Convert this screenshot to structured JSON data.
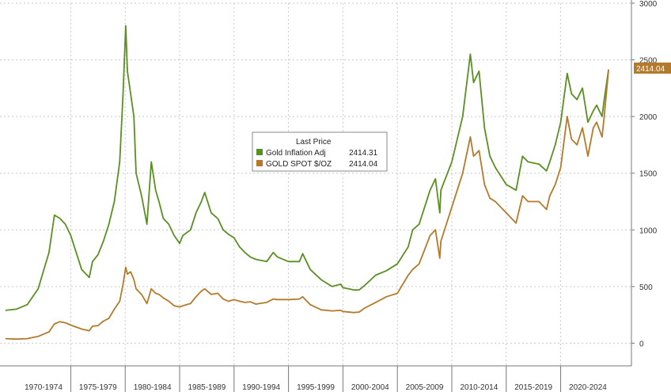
{
  "chart_data": {
    "type": "line",
    "ylim": [
      -200,
      3000
    ],
    "xlim": [
      1968.5,
      2026.5
    ],
    "y_ticks": [
      0,
      500,
      1000,
      1500,
      2000,
      2500,
      3000
    ],
    "x_categories": [
      "1970-1974",
      "1975-1979",
      "1980-1984",
      "1985-1989",
      "1990-1994",
      "1995-1999",
      "2000-2004",
      "2005-2009",
      "2010-2014",
      "2015-2019",
      "2020-2024"
    ],
    "grid": "dotted",
    "legend": {
      "title": "Last Price",
      "placement": "center",
      "entries": [
        {
          "label": "Gold Inflation Adj",
          "value": "2414.31",
          "color": "#5a8f22"
        },
        {
          "label": "GOLD SPOT $/OZ",
          "value": "2414.04",
          "color": "#b47a2a"
        }
      ]
    },
    "last_value_label": {
      "text": "2414.04",
      "color": "#b47a2a"
    },
    "series": [
      {
        "name": "Gold Inflation Adj",
        "color": "#5a8f22",
        "x": [
          1969,
          1970,
          1971,
          1972,
          1973,
          1973.5,
          1974,
          1974.5,
          1975,
          1976,
          1976.7,
          1977,
          1977.5,
          1978,
          1978.5,
          1979,
          1979.5,
          1979.8,
          1980.05,
          1980.2,
          1980.5,
          1980.8,
          1981,
          1981.5,
          1982,
          1982.4,
          1982.8,
          1983.1,
          1983.5,
          1984,
          1984.5,
          1985,
          1985.3,
          1986,
          1986.5,
          1987,
          1987.3,
          1987.9,
          1988.5,
          1989,
          1989.5,
          1990,
          1990.5,
          1991,
          1991.5,
          1992,
          1993,
          1993.6,
          1994,
          1995,
          1996,
          1996.3,
          1997,
          1998,
          1999,
          1999.8,
          2000,
          2001,
          2001.5,
          2002,
          2003,
          2004,
          2005,
          2006,
          2006.4,
          2007,
          2008,
          2008.5,
          2008.9,
          2009,
          2010,
          2011,
          2011.7,
          2012,
          2012.5,
          2013,
          2013.5,
          2014,
          2015,
          2015.9,
          2016.5,
          2017,
          2018,
          2018.7,
          2019,
          2019.5,
          2020,
          2020.6,
          2021,
          2021.5,
          2022,
          2022.5,
          2023,
          2023.3,
          2023.8,
          2024,
          2024.4
        ],
        "y": [
          290,
          300,
          340,
          480,
          800,
          1130,
          1100,
          1050,
          950,
          650,
          580,
          720,
          780,
          900,
          1050,
          1250,
          1600,
          2200,
          2800,
          2400,
          2200,
          2000,
          1500,
          1300,
          1050,
          1600,
          1350,
          1250,
          1100,
          1050,
          950,
          880,
          950,
          1000,
          1150,
          1250,
          1330,
          1150,
          1100,
          1000,
          960,
          930,
          850,
          800,
          760,
          740,
          720,
          800,
          760,
          720,
          720,
          790,
          650,
          560,
          500,
          520,
          490,
          470,
          470,
          510,
          600,
          640,
          700,
          850,
          1000,
          1050,
          1350,
          1450,
          1150,
          1350,
          1600,
          2000,
          2550,
          2300,
          2400,
          1900,
          1650,
          1550,
          1400,
          1350,
          1650,
          1600,
          1580,
          1520,
          1600,
          1750,
          1950,
          2380,
          2200,
          2150,
          2250,
          1950,
          2050,
          2100,
          2000,
          2150,
          2414.31
        ]
      },
      {
        "name": "GOLD SPOT $/OZ",
        "color": "#b47a2a",
        "x": [
          1969,
          1970,
          1971,
          1972,
          1973,
          1973.5,
          1974,
          1974.5,
          1975,
          1976,
          1976.7,
          1977,
          1977.5,
          1978,
          1978.5,
          1979,
          1979.5,
          1979.8,
          1980.05,
          1980.2,
          1980.5,
          1980.8,
          1981,
          1981.5,
          1982,
          1982.4,
          1982.8,
          1983.1,
          1983.5,
          1984,
          1984.5,
          1985,
          1985.3,
          1986,
          1986.5,
          1987,
          1987.3,
          1987.9,
          1988.5,
          1989,
          1989.5,
          1990,
          1990.5,
          1991,
          1991.5,
          1992,
          1993,
          1993.6,
          1994,
          1995,
          1996,
          1996.3,
          1997,
          1998,
          1999,
          1999.8,
          2000,
          2001,
          2001.5,
          2002,
          2003,
          2004,
          2005,
          2006,
          2006.4,
          2007,
          2008,
          2008.5,
          2008.9,
          2009,
          2010,
          2011,
          2011.7,
          2012,
          2012.5,
          2013,
          2013.5,
          2014,
          2015,
          2015.9,
          2016.5,
          2017,
          2018,
          2018.7,
          2019,
          2019.5,
          2020,
          2020.6,
          2021,
          2021.5,
          2022,
          2022.5,
          2023,
          2023.3,
          2023.8,
          2024,
          2024.4
        ],
        "y": [
          40,
          36,
          40,
          60,
          100,
          170,
          190,
          180,
          160,
          125,
          110,
          150,
          155,
          195,
          220,
          300,
          370,
          520,
          670,
          610,
          630,
          560,
          480,
          430,
          350,
          480,
          440,
          430,
          400,
          370,
          330,
          320,
          330,
          350,
          410,
          460,
          480,
          430,
          440,
          390,
          370,
          385,
          370,
          360,
          365,
          345,
          360,
          390,
          385,
          385,
          390,
          410,
          340,
          295,
          285,
          290,
          280,
          270,
          275,
          310,
          360,
          410,
          440,
          600,
          650,
          700,
          950,
          1000,
          750,
          900,
          1200,
          1500,
          1820,
          1650,
          1700,
          1400,
          1280,
          1250,
          1150,
          1060,
          1300,
          1250,
          1250,
          1180,
          1300,
          1400,
          1550,
          2000,
          1800,
          1750,
          1900,
          1650,
          1900,
          1950,
          1820,
          2000,
          2414.04
        ]
      }
    ]
  }
}
